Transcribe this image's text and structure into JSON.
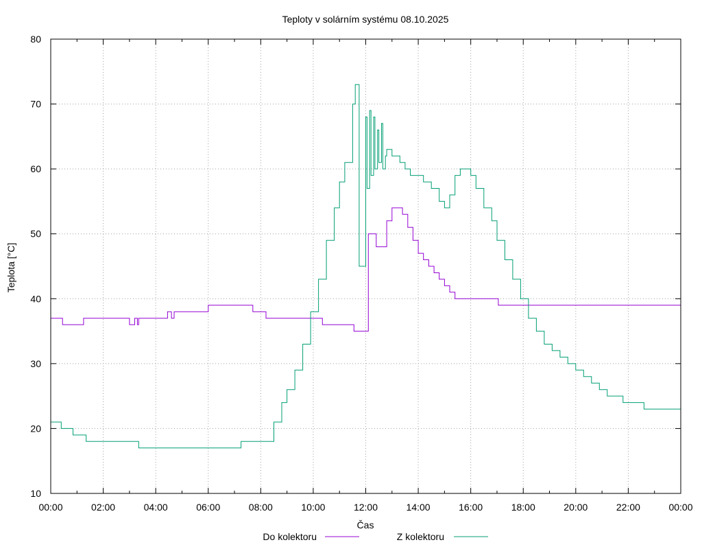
{
  "chart_data": {
    "type": "line",
    "title": "Teploty v solárním systému 08.10.2025",
    "xlabel": "Čas",
    "ylabel": "Teplota [°C]",
    "xlim": [
      0,
      24
    ],
    "ylim": [
      10,
      80
    ],
    "grid": true,
    "legend_position": "bottom-center",
    "x_tick_values": [
      0,
      2,
      4,
      6,
      8,
      10,
      12,
      14,
      16,
      18,
      20,
      22,
      24
    ],
    "x_tick_labels": [
      "00:00",
      "02:00",
      "04:00",
      "06:00",
      "08:00",
      "10:00",
      "12:00",
      "14:00",
      "16:00",
      "18:00",
      "20:00",
      "22:00",
      "00:00"
    ],
    "y_tick_values": [
      10,
      20,
      30,
      40,
      50,
      60,
      70,
      80
    ],
    "y_tick_labels": [
      "10",
      "20",
      "30",
      "40",
      "50",
      "60",
      "70",
      "80"
    ],
    "series": [
      {
        "name": "Do kolektoru",
        "color": "#9400d3",
        "x": [
          0,
          0.4,
          0.45,
          1.2,
          1.25,
          1.3,
          2.9,
          3.0,
          3.1,
          3.2,
          3.3,
          3.35,
          4.4,
          4.45,
          4.6,
          4.7,
          5.9,
          6.0,
          7.6,
          7.7,
          8.1,
          8.2,
          9.3,
          9.35,
          10.3,
          10.35,
          11.5,
          11.55,
          11.6,
          11.7,
          11.9,
          12.0,
          12.1,
          12.2,
          12.4,
          12.8,
          13.0,
          13.2,
          13.4,
          13.6,
          13.8,
          14.0,
          14.2,
          14.4,
          14.6,
          14.8,
          15.0,
          15.2,
          15.4,
          15.5,
          16.0,
          16.5,
          17.0,
          17.05,
          18.0,
          20.0,
          22.0,
          24.0
        ],
        "values": [
          37,
          37,
          36,
          36,
          37,
          37,
          37,
          36,
          36,
          37,
          36,
          37,
          37,
          38,
          37,
          38,
          38,
          39,
          39,
          38,
          38,
          37,
          37,
          37,
          37,
          36,
          36,
          35,
          35,
          35,
          35,
          35,
          50,
          50,
          48,
          52,
          54,
          54,
          53,
          51,
          49,
          47,
          46,
          45,
          44,
          43,
          42,
          41,
          40,
          40,
          40,
          40,
          40,
          39,
          39,
          39,
          39,
          39
        ]
      },
      {
        "name": "Z kolektoru",
        "color": "#009e73",
        "x": [
          0,
          0.35,
          0.4,
          0.8,
          0.85,
          1.3,
          1.35,
          3.3,
          3.35,
          7.2,
          7.25,
          8.2,
          8.5,
          8.8,
          9.0,
          9.3,
          9.6,
          9.9,
          10.2,
          10.5,
          10.8,
          11.0,
          11.2,
          11.5,
          11.6,
          11.75,
          12.0,
          12.05,
          12.15,
          12.2,
          12.3,
          12.35,
          12.45,
          12.5,
          12.6,
          12.65,
          12.75,
          12.8,
          12.9,
          13.0,
          13.1,
          13.3,
          13.5,
          13.7,
          13.9,
          14.2,
          14.5,
          14.8,
          15.0,
          15.2,
          15.4,
          15.6,
          15.8,
          16.0,
          16.2,
          16.5,
          16.8,
          17.0,
          17.3,
          17.6,
          17.9,
          18.2,
          18.5,
          18.8,
          19.1,
          19.4,
          19.7,
          20.0,
          20.3,
          20.6,
          20.9,
          21.2,
          21.5,
          21.8,
          22.0,
          22.3,
          22.6,
          22.9,
          23.2,
          23.5,
          23.9,
          24.0
        ],
        "values": [
          21,
          21,
          20,
          20,
          19,
          19,
          18,
          18,
          17,
          17,
          18,
          18,
          21,
          24,
          26,
          29,
          33,
          38,
          43,
          49,
          54,
          58,
          61,
          70,
          73,
          45,
          68,
          57,
          69,
          59,
          68,
          60,
          66,
          61,
          67,
          60,
          62,
          63,
          63,
          62,
          62,
          61,
          60,
          59,
          59,
          58,
          57,
          55,
          54,
          56,
          59,
          60,
          60,
          59,
          57,
          54,
          52,
          49,
          46,
          43,
          40,
          37,
          35,
          33,
          32,
          31,
          30,
          29,
          28,
          27,
          26,
          25,
          25,
          24,
          24,
          24,
          23,
          23,
          23,
          23,
          23,
          22
        ]
      }
    ]
  }
}
